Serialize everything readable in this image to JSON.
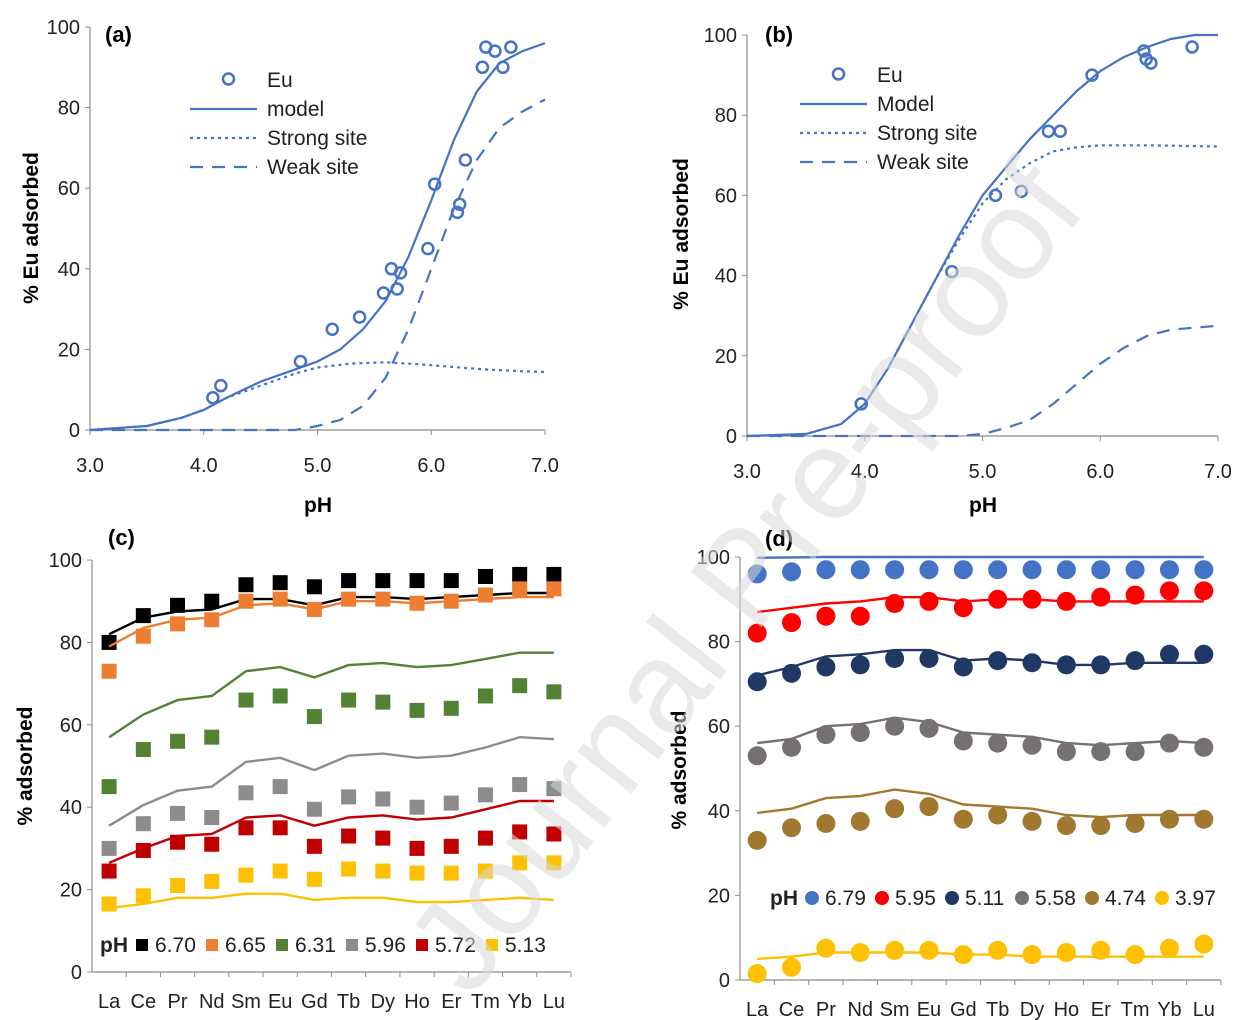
{
  "watermark": "Journal Pre-proof",
  "chart_data": [
    {
      "type": "scatter",
      "panel_label": "(a)",
      "xlabel": "pH",
      "ylabel": "% Eu adsorbed",
      "xlim": [
        3.0,
        7.0
      ],
      "ylim": [
        0,
        100
      ],
      "x_ticks": [
        "3.0",
        "4.0",
        "5.0",
        "6.0",
        "7.0"
      ],
      "y_ticks": [
        "0",
        "20",
        "40",
        "60",
        "80",
        "100"
      ],
      "color": "#4472C4",
      "legend": [
        "Eu",
        "model",
        "Strong site",
        "Weak site"
      ],
      "points": {
        "name": "Eu",
        "x": [
          4.08,
          4.15,
          4.85,
          5.13,
          5.37,
          5.58,
          5.65,
          5.7,
          5.73,
          5.97,
          6.03,
          6.23,
          6.25,
          6.3,
          6.45,
          6.48,
          6.56,
          6.63,
          6.7
        ],
        "y": [
          8,
          11,
          17,
          25,
          28,
          34,
          40,
          35,
          39,
          45,
          61,
          54,
          56,
          67,
          90,
          95,
          94,
          90,
          95
        ]
      },
      "curves": [
        {
          "name": "model",
          "dash": "solid",
          "x": [
            3.0,
            3.5,
            3.8,
            4.0,
            4.2,
            4.5,
            4.8,
            5.0,
            5.2,
            5.4,
            5.6,
            5.8,
            6.0,
            6.2,
            6.4,
            6.6,
            6.8,
            7.0
          ],
          "y": [
            0,
            1,
            3,
            5,
            8,
            12,
            15,
            17,
            20,
            25,
            32,
            43,
            57,
            72,
            84,
            91,
            94,
            96
          ]
        },
        {
          "name": "Strong site",
          "dash": "dot",
          "x": [
            3.0,
            3.5,
            3.8,
            4.0,
            4.2,
            4.5,
            4.8,
            5.0,
            5.3,
            5.6,
            5.9,
            6.2,
            6.5,
            6.8,
            7.0
          ],
          "y": [
            0,
            1,
            3,
            5,
            8,
            11,
            14,
            15.5,
            16.5,
            16.8,
            16.3,
            15.6,
            15,
            14.6,
            14.4
          ]
        },
        {
          "name": "Weak site",
          "dash": "dash",
          "x": [
            3.0,
            4.0,
            4.8,
            5.0,
            5.2,
            5.4,
            5.6,
            5.8,
            6.0,
            6.2,
            6.4,
            6.6,
            6.8,
            7.0
          ],
          "y": [
            0,
            0,
            0,
            1,
            2.5,
            6,
            13,
            25,
            40,
            55,
            67,
            75,
            79,
            82
          ]
        }
      ]
    },
    {
      "type": "scatter",
      "panel_label": "(b)",
      "xlabel": "pH",
      "ylabel": "% Eu adsorbed",
      "xlim": [
        3.0,
        7.0
      ],
      "ylim": [
        0,
        100
      ],
      "x_ticks": [
        "3.0",
        "4.0",
        "5.0",
        "6.0",
        "7.0"
      ],
      "y_ticks": [
        "0",
        "20",
        "40",
        "60",
        "80",
        "100"
      ],
      "color": "#4472C4",
      "legend": [
        "Eu",
        "Model",
        "Strong site",
        "Weak site"
      ],
      "points": {
        "name": "Eu",
        "x": [
          3.97,
          4.74,
          5.11,
          5.33,
          5.56,
          5.66,
          5.93,
          6.37,
          6.39,
          6.43,
          6.78
        ],
        "y": [
          8,
          41,
          60,
          61,
          76,
          76,
          90,
          96,
          94,
          93,
          97
        ]
      },
      "curves": [
        {
          "name": "Model",
          "dash": "solid",
          "x": [
            3.0,
            3.5,
            3.8,
            4.0,
            4.2,
            4.4,
            4.6,
            4.8,
            5.0,
            5.2,
            5.4,
            5.6,
            5.8,
            6.0,
            6.2,
            6.4,
            6.6,
            6.8,
            7.0
          ],
          "y": [
            0,
            0.5,
            3,
            8,
            17,
            28,
            39,
            50,
            60,
            67,
            74,
            80,
            86,
            91,
            94.5,
            97,
            99,
            100,
            100
          ]
        },
        {
          "name": "Strong site",
          "dash": "dot",
          "x": [
            3.0,
            3.5,
            3.8,
            4.0,
            4.2,
            4.4,
            4.6,
            4.8,
            5.0,
            5.2,
            5.4,
            5.6,
            5.8,
            6.0,
            6.4,
            7.0
          ],
          "y": [
            0,
            0.5,
            3,
            8,
            17,
            28,
            39,
            49,
            58,
            64,
            68,
            71,
            72,
            72.5,
            72.5,
            72.2
          ]
        },
        {
          "name": "Weak site",
          "dash": "dash",
          "x": [
            3.0,
            4.8,
            5.0,
            5.2,
            5.4,
            5.6,
            5.8,
            6.0,
            6.2,
            6.4,
            6.6,
            6.8,
            7.0
          ],
          "y": [
            0,
            0,
            0.5,
            2,
            4,
            8,
            13,
            18,
            22,
            25,
            26.5,
            27,
            27.5
          ]
        }
      ]
    },
    {
      "type": "scatter",
      "panel_label": "(c)",
      "xlabel": "",
      "ylabel": "% adsorbed",
      "categories": [
        "La",
        "Ce",
        "Pr",
        "Nd",
        "Sm",
        "Eu",
        "Gd",
        "Tb",
        "Dy",
        "Ho",
        "Er",
        "Tm",
        "Yb",
        "Lu"
      ],
      "x_ticks": [
        "La",
        "Ce",
        "Pr",
        "Nd",
        "Sm",
        "Eu",
        "Gd",
        "Tb",
        "Dy",
        "Ho",
        "Er",
        "Tm",
        "Yb",
        "Lu"
      ],
      "ylim": [
        0,
        100
      ],
      "y_ticks": [
        "0",
        "20",
        "40",
        "60",
        "80",
        "100"
      ],
      "legend_title": "pH",
      "legend": [
        "6.70",
        "6.65",
        "6.31",
        "5.96",
        "5.72",
        "5.13"
      ],
      "series": [
        {
          "name": "6.70",
          "color": "#000000",
          "values": [
            80,
            86.5,
            89,
            90,
            94,
            94.5,
            93.5,
            95,
            95,
            95,
            95,
            96,
            96.5,
            96.5
          ],
          "model": [
            82,
            86,
            87.5,
            88,
            90.5,
            90.5,
            89,
            91,
            91,
            90.5,
            91,
            91.5,
            92,
            92
          ]
        },
        {
          "name": "6.65",
          "color": "#ED7D31",
          "values": [
            73,
            81.5,
            84.5,
            85.5,
            90,
            90.5,
            88,
            90.5,
            90.5,
            89.5,
            90,
            91.5,
            93,
            93
          ],
          "model": [
            79,
            83.5,
            85.5,
            86,
            89,
            89.5,
            88,
            90,
            90,
            89.5,
            90,
            90.5,
            91,
            91
          ]
        },
        {
          "name": "6.31",
          "color": "#548235",
          "values": [
            45,
            54,
            56,
            57,
            66,
            67,
            62,
            66,
            65.5,
            63.5,
            64,
            67,
            69.5,
            68
          ],
          "model": [
            57,
            62.5,
            66,
            67,
            73,
            74,
            71.5,
            74.5,
            75,
            74,
            74.5,
            76,
            77.5,
            77.5
          ]
        },
        {
          "name": "5.96",
          "color": "#8C8C8C",
          "values": [
            30,
            36,
            38.5,
            37.5,
            43.5,
            45,
            39.5,
            42.5,
            42,
            40,
            41,
            43,
            45.5,
            44.5
          ],
          "model": [
            35.5,
            40.5,
            44,
            45,
            51,
            52,
            49,
            52.5,
            53,
            52,
            52.5,
            54.5,
            57,
            56.5
          ]
        },
        {
          "name": "5.72",
          "color": "#C00000",
          "values": [
            24.5,
            29.5,
            31.5,
            31,
            35,
            35,
            30.5,
            33,
            32.5,
            30,
            30.5,
            32.5,
            34,
            33.5
          ],
          "model": [
            26.5,
            30,
            33,
            33.5,
            37.5,
            38,
            35.5,
            37.5,
            38,
            37,
            37.5,
            39.5,
            41.5,
            41.5
          ]
        },
        {
          "name": "5.13",
          "color": "#FFC000",
          "values": [
            16.5,
            18.5,
            21,
            22,
            23.5,
            24.5,
            22.5,
            25,
            24.5,
            24,
            24,
            24.5,
            26.5,
            26.5
          ],
          "model": [
            15.5,
            16.5,
            18,
            18,
            19,
            19,
            17.5,
            18,
            18,
            17,
            17,
            17.5,
            18,
            17.5
          ]
        }
      ]
    },
    {
      "type": "scatter",
      "panel_label": "(d)",
      "xlabel": "",
      "ylabel": "% adsorbed",
      "categories": [
        "La",
        "Ce",
        "Pr",
        "Nd",
        "Sm",
        "Eu",
        "Gd",
        "Tb",
        "Dy",
        "Ho",
        "Er",
        "Tm",
        "Yb",
        "Lu"
      ],
      "x_ticks": [
        "La",
        "Ce",
        "Pr",
        "Nd",
        "Sm",
        "Eu",
        "Gd",
        "Tb",
        "Dy",
        "Ho",
        "Er",
        "Tm",
        "Yb",
        "Lu"
      ],
      "ylim": [
        0,
        100
      ],
      "y_ticks": [
        "0",
        "20",
        "40",
        "60",
        "80",
        "100"
      ],
      "legend_title": "pH",
      "legend": [
        "6.79",
        "5.95",
        "5.11",
        "5.58",
        "4.74",
        "3.97"
      ],
      "series": [
        {
          "name": "6.79",
          "color": "#4472C4",
          "values": [
            96,
            96.5,
            97,
            97,
            97,
            97,
            97,
            97,
            97,
            97,
            97,
            97,
            97,
            97
          ],
          "model": [
            99.8,
            99.9,
            100,
            100,
            100,
            100,
            100,
            100,
            100,
            100,
            100,
            100,
            100,
            100
          ]
        },
        {
          "name": "5.95",
          "color": "#FF0000",
          "values": [
            82,
            84.5,
            86,
            86,
            89,
            89.5,
            88,
            90,
            90,
            89.5,
            90.5,
            91,
            92,
            92
          ],
          "model": [
            87,
            88,
            89,
            89.5,
            90.5,
            90.5,
            89.5,
            90,
            90,
            89.5,
            89.5,
            89.5,
            89.5,
            89.5
          ]
        },
        {
          "name": "5.58",
          "color": "#203864",
          "values": [
            70.5,
            72.5,
            74,
            74.5,
            76,
            76,
            74,
            75.5,
            75,
            74.5,
            74.5,
            75.5,
            77,
            77
          ],
          "model": [
            72,
            74,
            76.5,
            77,
            78,
            78,
            75.5,
            76,
            75.5,
            74.5,
            74.5,
            75,
            75,
            75
          ]
        },
        {
          "name": "5.11",
          "color": "#767171",
          "values": [
            53,
            55,
            58,
            58.5,
            60,
            59.5,
            56.5,
            56,
            55.5,
            54,
            54,
            54,
            56,
            55
          ],
          "model": [
            56,
            57,
            60,
            60.5,
            62,
            61,
            58.5,
            58,
            57.5,
            56,
            55.5,
            56,
            56.5,
            56
          ]
        },
        {
          "name": "4.74",
          "color": "#A0782F",
          "values": [
            33,
            36,
            37,
            37.5,
            40.5,
            41,
            38,
            39,
            37.5,
            36.5,
            36.5,
            37,
            38,
            38
          ],
          "model": [
            39.5,
            40.5,
            43,
            43.5,
            45,
            44,
            41.5,
            41,
            40.5,
            39,
            38.5,
            39,
            39,
            39
          ]
        },
        {
          "name": "3.97",
          "color": "#FFC000",
          "values": [
            1.5,
            3,
            7.5,
            6.5,
            7,
            7,
            6,
            7,
            6,
            6.5,
            7,
            6,
            7.5,
            8.5
          ],
          "model": [
            5,
            5.5,
            6.5,
            6.5,
            6.5,
            6.5,
            6,
            6,
            5.5,
            5.5,
            5.5,
            5.5,
            5.5,
            5.5
          ]
        }
      ]
    }
  ]
}
